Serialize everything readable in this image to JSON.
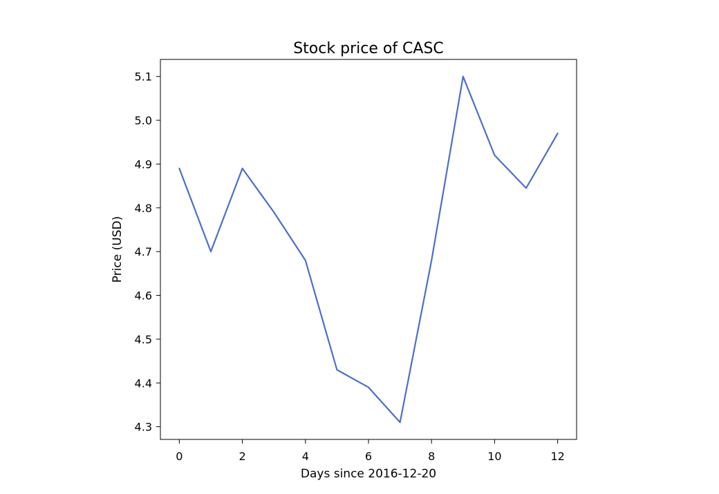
{
  "chart_data": {
    "type": "line",
    "title": "Stock price of CASC",
    "xlabel": "Days since 2016-12-20",
    "ylabel": "Price (USD)",
    "x": [
      0,
      1,
      2,
      3,
      4,
      5,
      6,
      7,
      8,
      9,
      10,
      11,
      12
    ],
    "series": [
      {
        "values": [
          4.89,
          4.7,
          4.89,
          4.79,
          4.68,
          4.43,
          4.39,
          4.31,
          4.68,
          5.1,
          4.92,
          4.845,
          4.97
        ],
        "color": "#4c6ec9"
      }
    ],
    "xticks": [
      0,
      2,
      4,
      6,
      8,
      10,
      12
    ],
    "xtick_labels": [
      "0",
      "2",
      "4",
      "6",
      "8",
      "10",
      "12"
    ],
    "yticks": [
      4.3,
      4.4,
      4.5,
      4.6,
      4.7,
      4.8,
      4.9,
      5.0,
      5.1
    ],
    "ytick_labels": [
      "4.3",
      "4.4",
      "4.5",
      "4.6",
      "4.7",
      "4.8",
      "4.9",
      "5.0",
      "5.1"
    ],
    "xlim": [
      -0.6,
      12.6
    ],
    "ylim": [
      4.271,
      5.139
    ],
    "grid": false,
    "legend": "none"
  }
}
